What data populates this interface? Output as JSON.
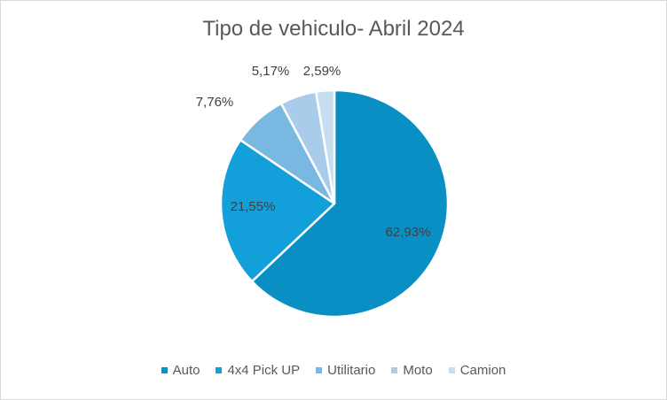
{
  "chart_data": {
    "type": "pie",
    "title": "Tipo de vehiculo- Abril 2024",
    "categories": [
      "Auto",
      "4x4 Pick UP",
      "Utilitario",
      "Moto",
      "Camion"
    ],
    "values": [
      62.93,
      21.55,
      7.76,
      5.17,
      2.59
    ],
    "value_labels": [
      "62,93%",
      "21,55%",
      "7,76%",
      "5,17%",
      "2,59%"
    ],
    "colors": [
      "#0a8fc4",
      "#139fd9",
      "#79b8e0",
      "#a9cceb",
      "#c6def2"
    ],
    "legend_position": "bottom"
  }
}
